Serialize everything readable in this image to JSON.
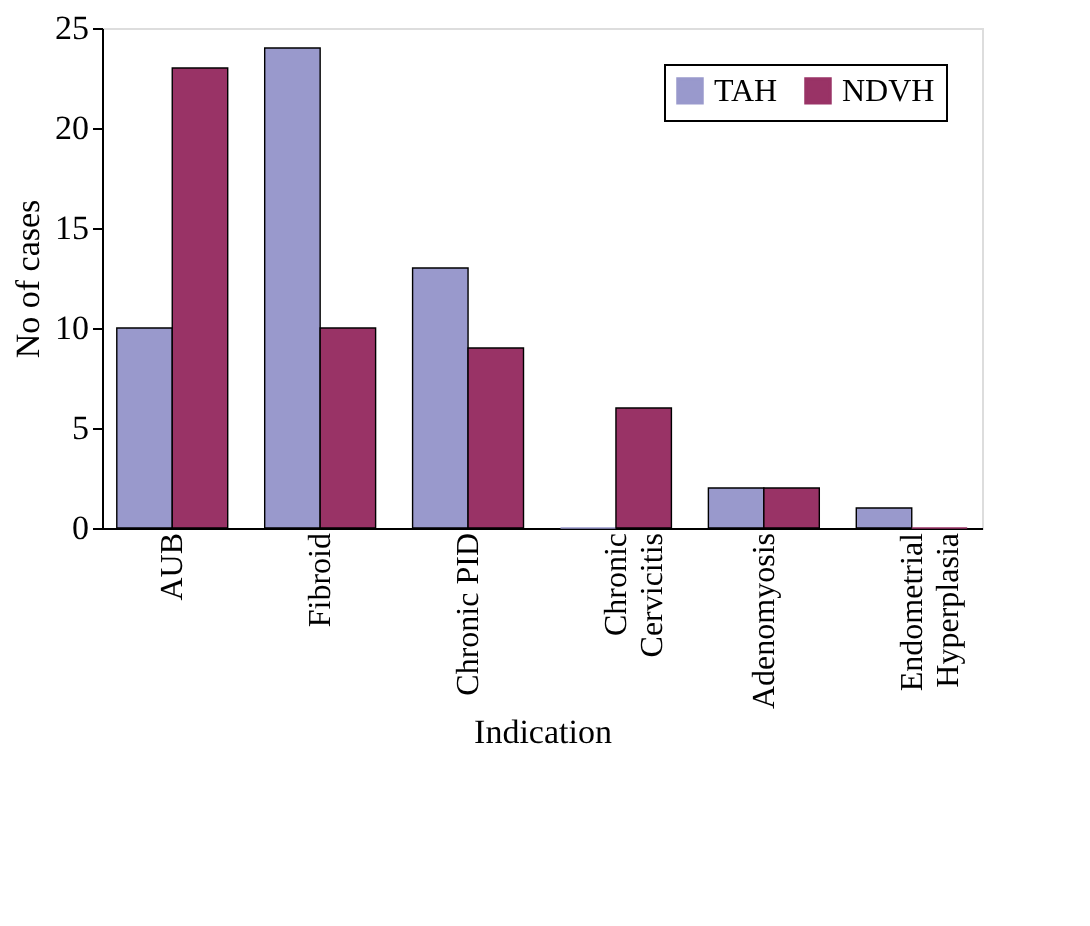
{
  "chart_data": {
    "type": "bar",
    "xlabel": "Indication",
    "ylabel": "No of cases",
    "categories": [
      "AUB",
      "Fibroid",
      "Chronic PID",
      "Chronic\nCervicitis",
      "Adenomyosis",
      "Endometrial\nHyperplasia"
    ],
    "series": [
      {
        "name": "TAH",
        "color": "#9999cc",
        "values": [
          10,
          24,
          13,
          0,
          2,
          1
        ]
      },
      {
        "name": "NDVH",
        "color": "#993366",
        "values": [
          23,
          10,
          9,
          6,
          2,
          0
        ]
      }
    ],
    "ylim": [
      0,
      25
    ],
    "yticks": [
      0,
      5,
      10,
      15,
      20,
      25
    ],
    "grid": false,
    "legend": "top right"
  }
}
